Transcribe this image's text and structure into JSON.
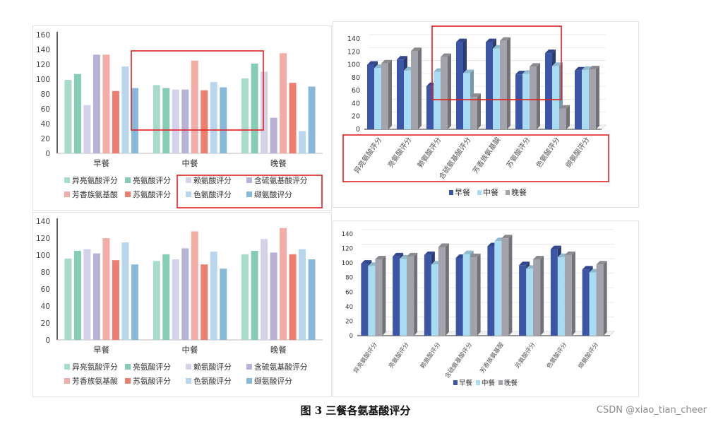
{
  "caption": "图 3 三餐各氨基酸评分",
  "watermark": "CSDN @xiao_tian_cheer",
  "chart_data": [
    {
      "type": "bar",
      "style": "flat",
      "categories": [
        "早餐",
        "中餐",
        "晚餐"
      ],
      "ylim": [
        0,
        160
      ],
      "yticks": [
        0,
        20,
        40,
        60,
        80,
        100,
        120,
        140,
        160
      ],
      "grid": false,
      "legend_position": "bottom",
      "annotation": "red boxes highlight 中餐 group and legend items 赖氨酸评分/含硫氨基酸评分/色氨酸评分/缬氨酸评分",
      "series": [
        {
          "name": "异亮氨酸评分",
          "color": "#a8dbc8",
          "values": [
            99,
            92,
            101
          ]
        },
        {
          "name": "亮氨酸评分",
          "color": "#86cdb6",
          "values": [
            107,
            88,
            121
          ]
        },
        {
          "name": "赖氨酸评分",
          "color": "#d4d2e8",
          "values": [
            65,
            86,
            110
          ]
        },
        {
          "name": "含硫氨基酸评分",
          "color": "#b7b3d6",
          "values": [
            133,
            86,
            48
          ]
        },
        {
          "name": "芳香族氨基酸",
          "color": "#f2aea6",
          "values": [
            133,
            125,
            135
          ]
        },
        {
          "name": "苏氨酸评分",
          "color": "#ed7e70",
          "values": [
            84,
            85,
            95
          ]
        },
        {
          "name": "色氨酸评分",
          "color": "#b9d6ec",
          "values": [
            117,
            96,
            30
          ]
        },
        {
          "name": "缬氨酸评分",
          "color": "#88b8da",
          "values": [
            88,
            89,
            90
          ]
        }
      ]
    },
    {
      "type": "bar",
      "style": "3d",
      "categories": [
        "异亮氨酸评分",
        "亮氨酸评分",
        "赖氨酸评分",
        "含硫氨基酸评分",
        "芳香族氨基酸",
        "苏氨酸评分",
        "色氨酸评分",
        "缬氨酸评分"
      ],
      "ylim": [
        0,
        140
      ],
      "yticks": [
        0,
        20,
        40,
        60,
        80,
        100,
        120,
        140
      ],
      "legend_position": "bottom",
      "annotation": "red boxes highlight 赖氨酸评分 to 芳香族氨基酸 groups and the category axis labels",
      "series": [
        {
          "name": "早餐",
          "color": "#3c55a5",
          "values": [
            100,
            108,
            67,
            135,
            135,
            85,
            118,
            91
          ]
        },
        {
          "name": "中餐",
          "color": "#a9dcf2",
          "values": [
            95,
            91,
            89,
            87,
            125,
            86,
            98,
            92
          ]
        },
        {
          "name": "晚餐",
          "color": "#a3a3ab",
          "values": [
            102,
            121,
            112,
            50,
            137,
            97,
            32,
            93
          ]
        }
      ]
    },
    {
      "type": "bar",
      "style": "flat",
      "categories": [
        "早餐",
        "中餐",
        "晚餐"
      ],
      "ylim": [
        0,
        140
      ],
      "yticks": [
        0,
        20,
        40,
        60,
        80,
        100,
        120,
        140
      ],
      "grid": false,
      "legend_position": "bottom",
      "series": [
        {
          "name": "异亮氨酸评分",
          "color": "#a8dbc8",
          "values": [
            96,
            93,
            101
          ]
        },
        {
          "name": "亮氨酸评分",
          "color": "#86cdb6",
          "values": [
            105,
            101,
            105
          ]
        },
        {
          "name": "赖氨酸评分",
          "color": "#d4d2e8",
          "values": [
            107,
            95,
            119
          ]
        },
        {
          "name": "含硫氨基酸评分",
          "color": "#b7b3d6",
          "values": [
            102,
            108,
            103
          ]
        },
        {
          "name": "芳香族氨基酸",
          "color": "#f2aea6",
          "values": [
            120,
            128,
            132
          ]
        },
        {
          "name": "苏氨酸评分",
          "color": "#ed7e70",
          "values": [
            94,
            89,
            101
          ]
        },
        {
          "name": "色氨酸评分",
          "color": "#b9d6ec",
          "values": [
            115,
            104,
            107
          ]
        },
        {
          "name": "缬氨酸评分",
          "color": "#88b8da",
          "values": [
            89,
            84,
            95
          ]
        }
      ]
    },
    {
      "type": "bar",
      "style": "3d",
      "categories": [
        "异亮氨酸评分",
        "亮氨酸评分",
        "赖氨酸评分",
        "含硫氨基酸评分",
        "芳香族氨基酸",
        "苏氨酸评分",
        "色氨酸评分",
        "缬氨酸评分"
      ],
      "ylim": [
        0,
        140
      ],
      "yticks": [
        0,
        20,
        40,
        60,
        80,
        100,
        120,
        140
      ],
      "legend_position": "bottom",
      "series": [
        {
          "name": "早餐",
          "color": "#3c55a5",
          "values": [
            99,
            109,
            111,
            107,
            123,
            97,
            119,
            91
          ]
        },
        {
          "name": "中餐",
          "color": "#a9dcf2",
          "values": [
            96,
            106,
            98,
            112,
            130,
            92,
            108,
            87
          ]
        },
        {
          "name": "晚餐",
          "color": "#a3a3ab",
          "values": [
            105,
            109,
            122,
            108,
            134,
            105,
            111,
            98
          ]
        }
      ]
    }
  ]
}
